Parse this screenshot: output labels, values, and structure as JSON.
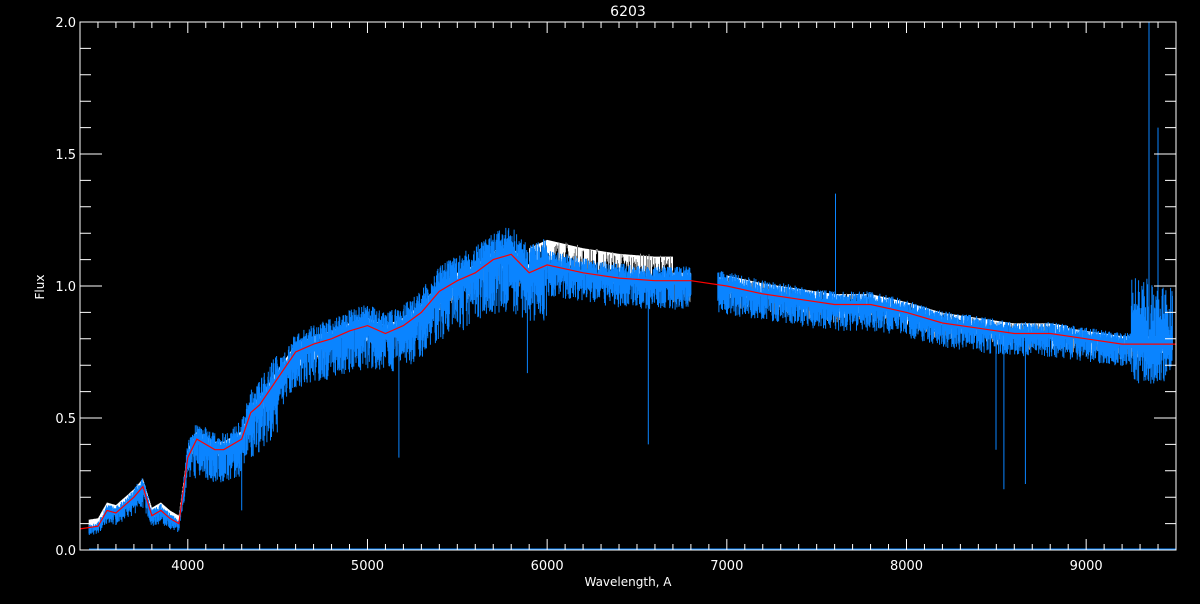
{
  "chart_data": {
    "type": "line",
    "title": "6203",
    "xlabel": "Wavelength, A",
    "ylabel": "Flux",
    "xlim": [
      3400,
      9500
    ],
    "ylim": [
      0.0,
      2.0
    ],
    "x_ticks": [
      "4000",
      "5000",
      "6000",
      "7000",
      "8000",
      "9000"
    ],
    "y_ticks": [
      "0.0",
      "0.5",
      "1.0",
      "1.5",
      "2.0"
    ],
    "grid": false,
    "colors": {
      "background": "#000000",
      "axes": "#ffffff",
      "observed": "#0a84ff",
      "model": "#ff0000",
      "reference": "#ffffff"
    },
    "series": [
      {
        "role": "model-continuum",
        "color": "#ff0000",
        "x": [
          3400,
          3500,
          3550,
          3600,
          3700,
          3750,
          3800,
          3850,
          3900,
          3950,
          4000,
          4050,
          4100,
          4150,
          4200,
          4300,
          4350,
          4400,
          4500,
          4600,
          4700,
          4800,
          4900,
          5000,
          5100,
          5200,
          5300,
          5400,
          5500,
          5600,
          5700,
          5800,
          5900,
          6000,
          6200,
          6400,
          6600,
          6800,
          7000,
          7200,
          7400,
          7600,
          7800,
          8000,
          8200,
          8400,
          8600,
          8800,
          9000,
          9200,
          9400,
          9500
        ],
        "y": [
          0.08,
          0.09,
          0.15,
          0.14,
          0.2,
          0.24,
          0.13,
          0.15,
          0.12,
          0.1,
          0.35,
          0.42,
          0.4,
          0.38,
          0.38,
          0.42,
          0.52,
          0.55,
          0.65,
          0.75,
          0.78,
          0.8,
          0.83,
          0.85,
          0.82,
          0.85,
          0.9,
          0.98,
          1.02,
          1.05,
          1.1,
          1.12,
          1.05,
          1.08,
          1.05,
          1.03,
          1.02,
          1.02,
          1.0,
          0.97,
          0.95,
          0.93,
          0.93,
          0.9,
          0.86,
          0.84,
          0.82,
          0.82,
          0.8,
          0.78,
          0.78,
          0.78
        ]
      },
      {
        "role": "observed",
        "color": "#0a84ff",
        "absorption_lines": [
          [
            4300,
            0.15
          ],
          [
            5175,
            0.35
          ],
          [
            5890,
            0.67
          ],
          [
            6563,
            0.4
          ],
          [
            8498,
            0.38
          ],
          [
            8542,
            0.23
          ],
          [
            8662,
            0.25
          ]
        ],
        "emission_features": [
          [
            7605,
            1.35
          ],
          [
            9350,
            2.0
          ],
          [
            9400,
            1.6
          ]
        ]
      }
    ]
  }
}
